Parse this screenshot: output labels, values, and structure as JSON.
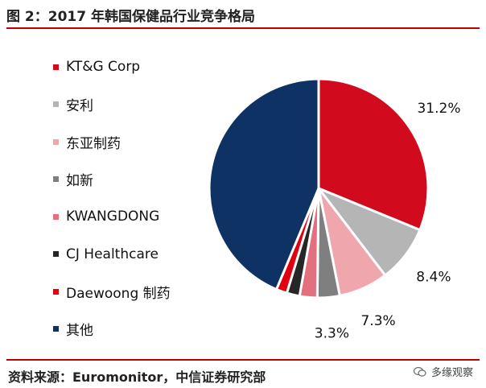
{
  "figure_title": "图 2：2017 年韩国保健品行业竞争格局",
  "source_text": "资料来源：Euromonitor，中信证券研究部",
  "watermark_text": "多缘观察",
  "chart_data": {
    "type": "pie",
    "title": "图 2：2017 年韩国保健品行业竞争格局",
    "legend_position": "left",
    "start_angle_deg": 0,
    "direction": "clockwise",
    "slices": [
      {
        "name": "KT&G Corp",
        "value": 31.2,
        "color": "#d10a1e",
        "label": "31.2%"
      },
      {
        "name": "安利",
        "value": 8.4,
        "color": "#b5b5b5",
        "label": "8.4%"
      },
      {
        "name": "东亚制药",
        "value": 7.3,
        "color": "#efa6ad",
        "label": "7.3%"
      },
      {
        "name": "如新",
        "value": 3.3,
        "color": "#7f7f7f",
        "label": "3.3%"
      },
      {
        "name": "KWANGDONG",
        "value": 2.6,
        "color": "#e2707f",
        "label": ""
      },
      {
        "name": "CJ Healthcare",
        "value": 1.9,
        "color": "#262626",
        "label": ""
      },
      {
        "name": "Daewoong 制药",
        "value": 1.6,
        "color": "#e0000f",
        "label": ""
      },
      {
        "name": "其他",
        "value": 43.7,
        "color": "#0e3263",
        "label": ""
      }
    ]
  }
}
